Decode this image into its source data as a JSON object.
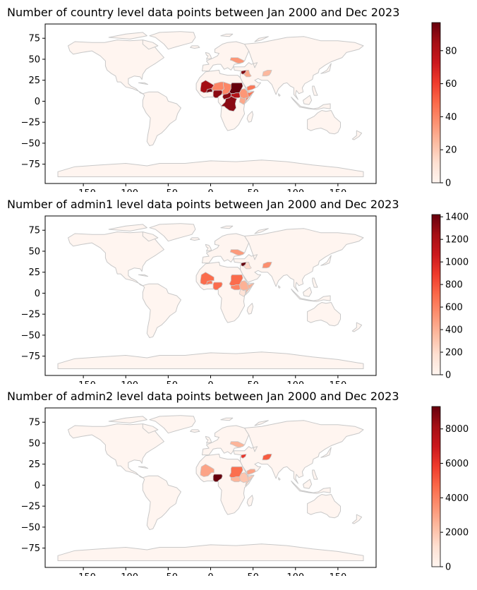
{
  "figure": {
    "panels": [
      {
        "title": "Number of country level data points between Jan 2000 and Dec 2023",
        "colorbar": {
          "max": 97,
          "ticks": [
            0,
            20,
            40,
            60,
            80
          ]
        },
        "regions": [
          {
            "name": "Mali",
            "value": 85
          },
          {
            "name": "Burkina Faso",
            "value": 95
          },
          {
            "name": "Niger",
            "value": 40
          },
          {
            "name": "Chad",
            "value": 40
          },
          {
            "name": "Nigeria",
            "value": 90
          },
          {
            "name": "Sudan",
            "value": 97
          },
          {
            "name": "South Sudan",
            "value": 80
          },
          {
            "name": "Central African Republic",
            "value": 90
          },
          {
            "name": "DR Congo",
            "value": 90
          },
          {
            "name": "Ethiopia",
            "value": 35
          },
          {
            "name": "Somalia",
            "value": 45
          },
          {
            "name": "Kenya",
            "value": 30
          },
          {
            "name": "Syria",
            "value": 92
          },
          {
            "name": "Iraq",
            "value": 30
          },
          {
            "name": "Yemen",
            "value": 45
          },
          {
            "name": "Afghanistan",
            "value": 25
          },
          {
            "name": "Ukraine",
            "value": 35
          }
        ]
      },
      {
        "title": "Number of admin1 level data points between Jan 2000 and Dec 2023",
        "colorbar": {
          "max": 1420,
          "ticks": [
            0,
            200,
            400,
            600,
            800,
            1000,
            1200,
            1400
          ]
        },
        "regions": [
          {
            "name": "Syria",
            "value": 1420
          },
          {
            "name": "Mali",
            "value": 700
          },
          {
            "name": "Burkina Faso",
            "value": 650
          },
          {
            "name": "Nigeria",
            "value": 700
          },
          {
            "name": "Sudan",
            "value": 700
          },
          {
            "name": "South Sudan",
            "value": 600
          },
          {
            "name": "Ethiopia",
            "value": 400
          },
          {
            "name": "Somalia",
            "value": 400
          },
          {
            "name": "Afghanistan",
            "value": 550
          },
          {
            "name": "Ukraine",
            "value": 500
          },
          {
            "name": "Kenya",
            "value": 150
          },
          {
            "name": "Iraq",
            "value": 200
          }
        ]
      },
      {
        "title": "Number of admin2 level data points between Jan 2000 and Dec 2023",
        "colorbar": {
          "max": 9300,
          "ticks": [
            0,
            2000,
            4000,
            6000,
            8000
          ]
        },
        "regions": [
          {
            "name": "Nigeria",
            "value": 9300
          },
          {
            "name": "Syria",
            "value": 6000
          },
          {
            "name": "Afghanistan",
            "value": 5000
          },
          {
            "name": "Sudan",
            "value": 4500
          },
          {
            "name": "Mali",
            "value": 3000
          },
          {
            "name": "Yemen",
            "value": 3000
          },
          {
            "name": "South Sudan",
            "value": 2500
          },
          {
            "name": "Ethiopia",
            "value": 2000
          },
          {
            "name": "Somalia",
            "value": 2000
          },
          {
            "name": "Ukraine",
            "value": 2500
          }
        ]
      }
    ],
    "axes": {
      "x_ticks": [
        -150,
        -100,
        -50,
        0,
        50,
        100,
        150
      ],
      "y_ticks": [
        75,
        50,
        25,
        0,
        -25,
        -50,
        -75
      ]
    },
    "colormap": "Reds",
    "background_fill": "#fff5f0",
    "outline": "#c8c8c8"
  }
}
